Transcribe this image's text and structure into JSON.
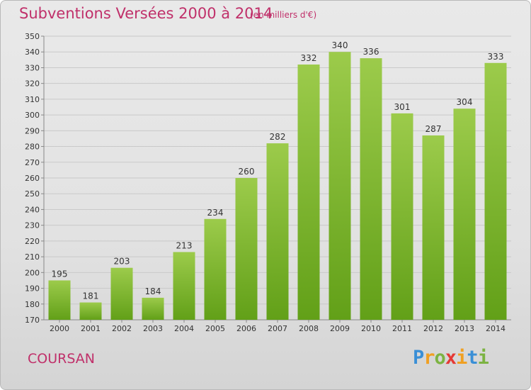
{
  "chart_data": {
    "type": "bar",
    "title": "Subventions Versées 2000 à 2014",
    "subtitle": "(en milliers d'€)",
    "categories": [
      "2000",
      "2001",
      "2002",
      "2003",
      "2004",
      "2005",
      "2006",
      "2007",
      "2008",
      "2009",
      "2010",
      "2011",
      "2012",
      "2013",
      "2014"
    ],
    "values": [
      195,
      181,
      203,
      184,
      213,
      234,
      260,
      282,
      332,
      340,
      336,
      301,
      287,
      304,
      333
    ],
    "ylim": [
      170,
      350
    ],
    "ytick_step": 10,
    "grid": true,
    "bar_color_top": "#9ccb4b",
    "bar_color_bottom": "#62a018"
  },
  "footer": {
    "location": "COURSAN",
    "logo_letters": [
      "P",
      "r",
      "o",
      "x",
      "i",
      "t",
      "i"
    ],
    "logo_colors": [
      "#3a8fd6",
      "#f0a022",
      "#7cb342",
      "#e53935",
      "#f0a022",
      "#3a8fd6",
      "#7cb342"
    ]
  }
}
